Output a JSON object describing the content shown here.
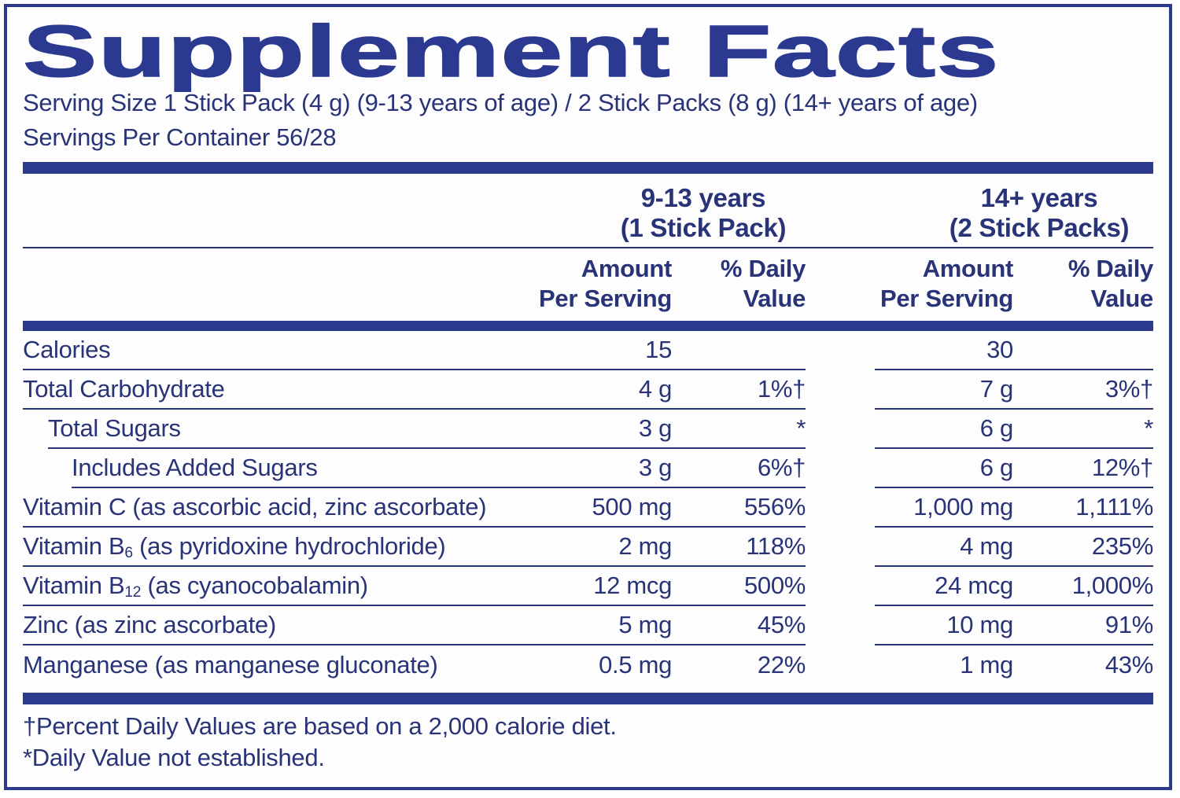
{
  "colors": {
    "navy_text": "#293377",
    "navy_title": "#2b3990",
    "navy_bar": "#2b3a8c",
    "background": "#fdfdfe"
  },
  "title": "Supplement Facts",
  "serving": {
    "line1": "Serving Size 1 Stick Pack (4 g) (9-13 years of age) / 2 Stick Packs (8 g) (14+ years of age)",
    "line2": "Servings Per Container 56/28"
  },
  "columns": {
    "group1": {
      "line1": "9-13 years",
      "line2": "(1 Stick Pack)"
    },
    "group2": {
      "line1": "14+ years",
      "line2": "(2 Stick Packs)"
    },
    "amount_header": {
      "line1": "Amount",
      "line2": "Per Serving"
    },
    "dv_header": {
      "line1": "% Daily",
      "line2": "Value"
    }
  },
  "rows": [
    {
      "label": "Calories",
      "a1": "15",
      "dv1": "",
      "a2": "30",
      "dv2": ""
    },
    {
      "label": "Total Carbohydrate",
      "a1": "4 g",
      "dv1": "1%†",
      "a2": "7 g",
      "dv2": "3%†"
    },
    {
      "label": "Total Sugars",
      "a1": "3 g",
      "dv1": "*",
      "a2": "6 g",
      "dv2": "*"
    },
    {
      "label": "Includes Added Sugars",
      "a1": "3 g",
      "dv1": "6%†",
      "a2": "6 g",
      "dv2": "12%†"
    },
    {
      "label": "Vitamin C (as ascorbic acid, zinc ascorbate)",
      "a1": "500 mg",
      "dv1": "556%",
      "a2": "1,000 mg",
      "dv2": "1,111%"
    },
    {
      "label_pre": "Vitamin B",
      "label_sub": "6",
      "label_post": " (as pyridoxine hydrochloride)",
      "a1": "2 mg",
      "dv1": "118%",
      "a2": "4 mg",
      "dv2": "235%"
    },
    {
      "label_pre": "Vitamin B",
      "label_sub": "12",
      "label_post": " (as cyanocobalamin)",
      "a1": "12 mcg",
      "dv1": "500%",
      "a2": "24 mcg",
      "dv2": "1,000%"
    },
    {
      "label": "Zinc (as zinc ascorbate)",
      "a1": "5 mg",
      "dv1": "45%",
      "a2": "10 mg",
      "dv2": "91%"
    },
    {
      "label": "Manganese (as manganese gluconate)",
      "a1": "0.5 mg",
      "dv1": "22%",
      "a2": "1 mg",
      "dv2": "43%"
    }
  ],
  "footnotes": {
    "dagger": "†Percent Daily Values are based on a 2,000 calorie diet.",
    "asterisk": "*Daily Value not established."
  }
}
